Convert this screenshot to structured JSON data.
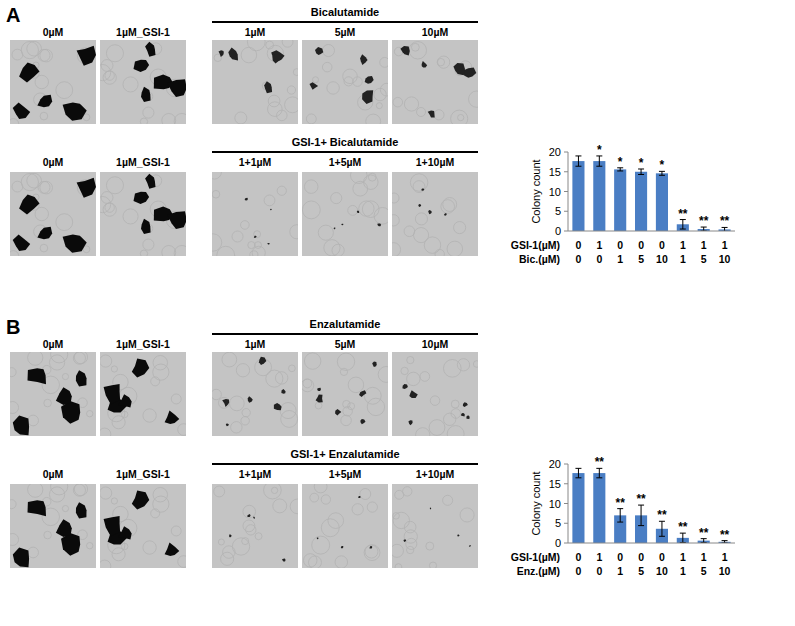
{
  "panels": [
    {
      "label": "A",
      "drug": "Bicalutamide",
      "combo": "GSI-1+ Bicalutamide",
      "image_labels_top": [
        "0µM",
        "1µM_GSI-1",
        "1µM",
        "5µM",
        "10µM"
      ],
      "image_labels_bottom": [
        "0µM",
        "1µM_GSI-1",
        "1+1µM",
        "1+5µM",
        "1+10µM"
      ]
    },
    {
      "label": "B",
      "drug": "Enzalutamide",
      "combo": "GSI-1+ Enzalutamide",
      "image_labels_top": [
        "0µM",
        "1µM_GSI-1",
        "1µM",
        "5µM",
        "10µM"
      ],
      "image_labels_bottom": [
        "0µM",
        "1µM_GSI-1",
        "1+1µM",
        "1+5µM",
        "1+10µM"
      ]
    }
  ],
  "chart_data": [
    {
      "type": "bar",
      "y_label": "Colony count",
      "color": "#4a7ec4",
      "categories": [
        null,
        null,
        null,
        null,
        null,
        null,
        null,
        null
      ],
      "values": [
        17.7,
        17.7,
        15.6,
        15.0,
        14.6,
        1.7,
        0.5,
        0.4
      ],
      "errors": [
        1.3,
        1.3,
        0.4,
        0.7,
        0.5,
        1.2,
        0.5,
        0.5
      ],
      "significance": [
        null,
        "*",
        "*",
        "*",
        "*",
        "**",
        "**",
        "**"
      ],
      "x_table": [
        {
          "label": "GSI-1(µM)",
          "values": [
            0,
            1,
            0,
            0,
            0,
            1,
            1,
            1
          ]
        },
        {
          "label": "Bic.(µM)",
          "values": [
            0,
            0,
            1,
            5,
            10,
            1,
            5,
            10
          ]
        }
      ],
      "ylim": [
        0,
        20
      ],
      "yticks": [
        0,
        5,
        10,
        15,
        20
      ],
      "grid": false
    },
    {
      "type": "bar",
      "y_label": "Colony count",
      "color": "#4a7ec4",
      "categories": [
        null,
        null,
        null,
        null,
        null,
        null,
        null,
        null
      ],
      "values": [
        17.7,
        17.7,
        7.0,
        7.0,
        3.6,
        1.3,
        0.6,
        0.3
      ],
      "errors": [
        1.2,
        1.2,
        1.7,
        2.6,
        1.9,
        1.2,
        0.5,
        0.3
      ],
      "significance": [
        null,
        "**",
        "**",
        "**",
        "**",
        "**",
        "**",
        "**"
      ],
      "x_table": [
        {
          "label": "GSI-1(µM)",
          "values": [
            0,
            1,
            0,
            0,
            0,
            1,
            1,
            1
          ]
        },
        {
          "label": "Enz.(µM)",
          "values": [
            0,
            0,
            1,
            5,
            10,
            1,
            5,
            10
          ]
        }
      ],
      "ylim": [
        0,
        20
      ],
      "yticks": [
        0,
        5,
        10,
        15,
        20
      ],
      "grid": false
    }
  ]
}
